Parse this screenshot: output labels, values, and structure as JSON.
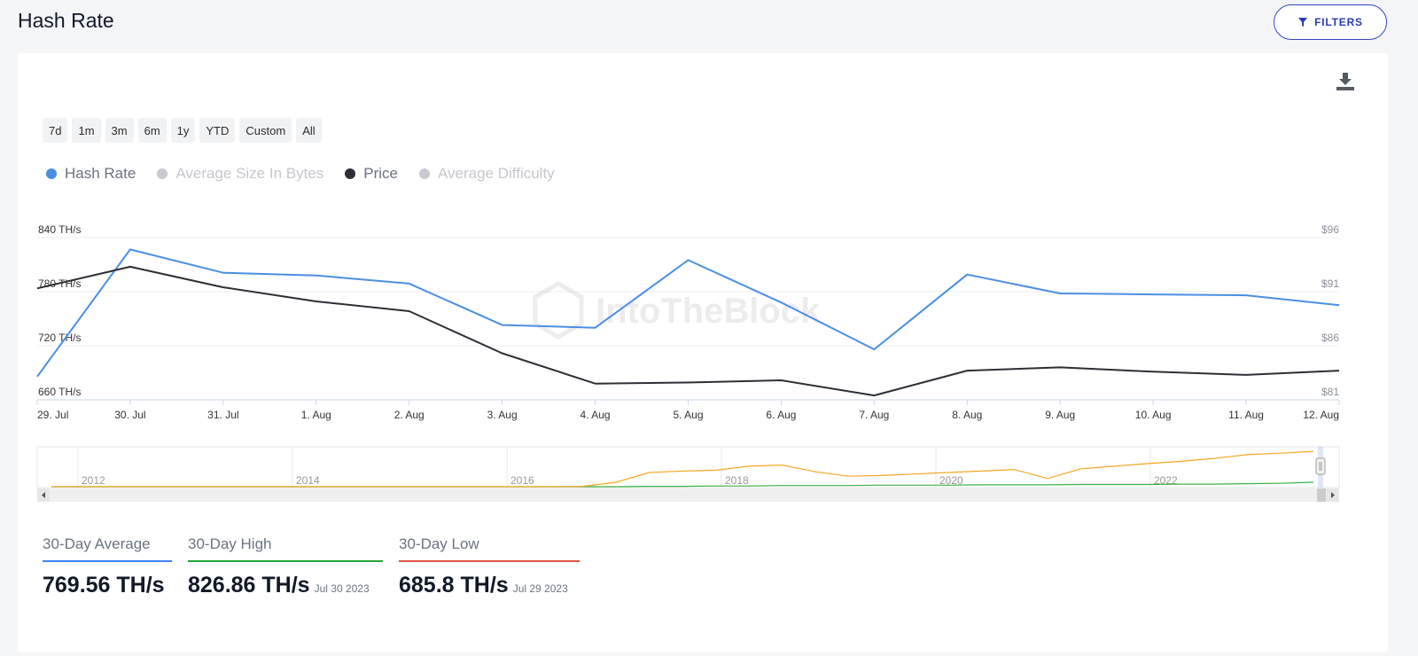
{
  "page": {
    "title": "Hash Rate",
    "filters_label": "FILTERS"
  },
  "toolbar": {
    "range_buttons": [
      "7d",
      "1m",
      "3m",
      "6m",
      "1y",
      "YTD",
      "Custom",
      "All"
    ]
  },
  "legend": [
    {
      "label": "Hash Rate",
      "color": "#4a8fe3",
      "active": true
    },
    {
      "label": "Average Size In Bytes",
      "color": "#c8cacf",
      "active": false
    },
    {
      "label": "Price",
      "color": "#2d2f35",
      "active": true
    },
    {
      "label": "Average Difficulty",
      "color": "#c8cacf",
      "active": false
    }
  ],
  "chart_data": {
    "type": "line",
    "categories": [
      "29. Jul",
      "30. Jul",
      "31. Jul",
      "1. Aug",
      "2. Aug",
      "3. Aug",
      "4. Aug",
      "5. Aug",
      "6. Aug",
      "7. Aug",
      "8. Aug",
      "9. Aug",
      "10. Aug",
      "11. Aug",
      "12. Aug"
    ],
    "series": [
      {
        "name": "Hash Rate",
        "axis": "left",
        "color": "#4a8fe3",
        "values": [
          685.8,
          826.86,
          801,
          798,
          789,
          743,
          740,
          815,
          768,
          716,
          799,
          778,
          777,
          776,
          765
        ]
      },
      {
        "name": "Price",
        "axis": "right",
        "color": "#2d2f35",
        "values": [
          91.3,
          93.3,
          91.4,
          90.1,
          89.2,
          85.3,
          82.5,
          82.6,
          82.8,
          81.4,
          83.7,
          84.0,
          83.6,
          83.3,
          83.7
        ]
      }
    ],
    "y_left": {
      "min": 660,
      "max": 840,
      "ticks": [
        "660 TH/s",
        "720 TH/s",
        "780 TH/s",
        "840 TH/s"
      ]
    },
    "y_right": {
      "min": 81,
      "max": 96,
      "ticks": [
        "$81",
        "$86",
        "$91",
        "$96"
      ]
    },
    "grid": true,
    "watermark": "IntoTheBlock",
    "navigator": {
      "year_labels": [
        "2012",
        "2014",
        "2016",
        "2018",
        "2020",
        "2022"
      ],
      "price_color": "#f5a623",
      "hash_color": "#3cb043",
      "price_profile": [
        0,
        0,
        0,
        0,
        0,
        0,
        0,
        0,
        0,
        0,
        0,
        0,
        0,
        0,
        0,
        0,
        0.01,
        0.12,
        0.38,
        0.42,
        0.44,
        0.55,
        0.58,
        0.4,
        0.28,
        0.3,
        0.34,
        0.38,
        0.42,
        0.46,
        0.22,
        0.48,
        0.55,
        0.62,
        0.68,
        0.76,
        0.86,
        0.9,
        0.95
      ],
      "hash_profile": [
        0,
        0,
        0,
        0,
        0,
        0,
        0,
        0,
        0,
        0,
        0,
        0,
        0,
        0,
        0,
        0,
        0,
        0,
        0.01,
        0.01,
        0.02,
        0.02,
        0.03,
        0.03,
        0.03,
        0.04,
        0.04,
        0.04,
        0.05,
        0.05,
        0.05,
        0.06,
        0.06,
        0.06,
        0.07,
        0.07,
        0.08,
        0.09,
        0.12
      ]
    }
  },
  "stats": [
    {
      "label": "30-Day Average",
      "value": "769.56 TH/s",
      "date": "",
      "color": "#3b82f6"
    },
    {
      "label": "30-Day High",
      "value": "826.86 TH/s",
      "date": "Jul 30 2023",
      "color": "#22a33a"
    },
    {
      "label": "30-Day Low",
      "value": "685.8 TH/s",
      "date": "Jul 29 2023",
      "color": "#e0533d"
    }
  ]
}
